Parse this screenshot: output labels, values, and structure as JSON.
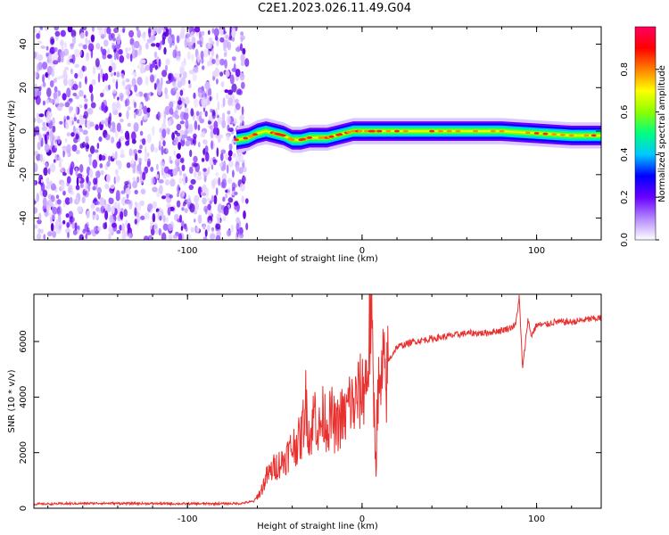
{
  "title": "C2E1.2023.026.11.49.G04",
  "charts": [
    {
      "id": "spectrogram",
      "type": "heatmap",
      "xlabel": "Height of straight line (km)",
      "ylabel": "Frequency (Hz)",
      "xlim": [
        -188,
        137
      ],
      "ylim": [
        -50,
        48
      ],
      "xticks": [
        -100,
        0,
        100
      ],
      "yticks": [
        -40,
        -20,
        0,
        20,
        40
      ],
      "colorbar": {
        "label": "Normalized spectral amplitude",
        "range": [
          0,
          1
        ],
        "ticks": [
          "0.0",
          "0.2",
          "0.4",
          "0.6",
          "0.8"
        ],
        "tick_values": [
          0.0,
          0.2,
          0.4,
          0.6,
          0.8
        ],
        "colors": [
          "#ffffff",
          "#b388ff",
          "#6a00ff",
          "#0000ff",
          "#00c8ff",
          "#00ff80",
          "#8cff00",
          "#ffff00",
          "#ff8000",
          "#ff0000",
          "#ff0060"
        ]
      },
      "noise_region": {
        "x_from": -188,
        "x_to": -70
      },
      "ridge": {
        "x": [
          -72,
          -65,
          -60,
          -55,
          -50,
          -45,
          -40,
          -35,
          -30,
          -25,
          -20,
          -15,
          -10,
          -5,
          0,
          5,
          10,
          20,
          40,
          60,
          80,
          100,
          120,
          137
        ],
        "y": [
          -4,
          -3,
          -1,
          0,
          -1,
          -2,
          -4,
          -4,
          -3,
          -3,
          -3,
          -2,
          -1,
          0,
          0,
          0,
          0,
          0,
          0,
          0,
          0,
          -1,
          -2,
          -2
        ]
      }
    },
    {
      "id": "snr",
      "type": "line",
      "xlabel": "Height of straight line (km)",
      "ylabel": "SNR (10 * v/v)",
      "xlim": [
        -188,
        137
      ],
      "ylim": [
        0,
        7700
      ],
      "xticks": [
        -100,
        0,
        100
      ],
      "yticks": [
        0,
        2000,
        4000,
        6000
      ],
      "color": "#e8302e",
      "series": [
        {
          "x": [
            -188,
            -150,
            -100,
            -70,
            -62,
            -58,
            -55,
            -50,
            -45,
            -40,
            -35,
            -32,
            -30,
            -27,
            -25,
            -22,
            -20,
            -17,
            -15,
            -12,
            -10,
            -7,
            -5,
            -2,
            0,
            3,
            5,
            7,
            8,
            9,
            10,
            12,
            14,
            15,
            17,
            20,
            25,
            30,
            40,
            50,
            60,
            70,
            80,
            85,
            88,
            90,
            92,
            95,
            97,
            100,
            105,
            110,
            120,
            130,
            137
          ],
          "y": [
            150,
            180,
            160,
            170,
            250,
            600,
            1100,
            1500,
            1700,
            2200,
            2500,
            3900,
            2400,
            3600,
            2700,
            3400,
            3000,
            3300,
            2800,
            3300,
            3200,
            3900,
            3600,
            4100,
            4200,
            4800,
            7100,
            3400,
            1500,
            4600,
            3800,
            5000,
            4400,
            5300,
            5500,
            5800,
            5900,
            6000,
            6100,
            6200,
            6300,
            6300,
            6400,
            6500,
            6600,
            7600,
            5000,
            6800,
            6200,
            6600,
            6600,
            6700,
            6700,
            6800,
            6850
          ]
        }
      ]
    }
  ]
}
